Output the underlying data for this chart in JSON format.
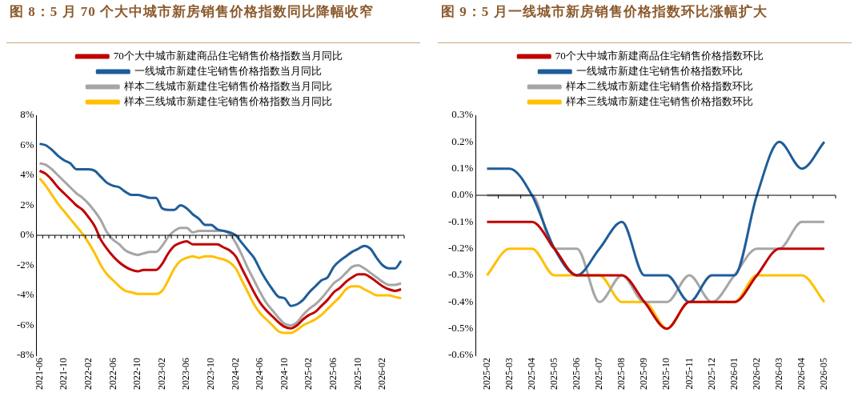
{
  "chart_data": [
    {
      "type": "line",
      "title": "图 8：5 月 70 个大中城市新房销售价格指数同比降幅收窄",
      "categories": [
        "2021-06",
        null,
        null,
        null,
        "2021-10",
        null,
        null,
        null,
        "2022-02",
        null,
        null,
        null,
        "2022-06",
        null,
        null,
        null,
        "2022-10",
        null,
        null,
        null,
        "2023-02",
        null,
        null,
        null,
        "2023-06",
        null,
        null,
        null,
        "2023-10",
        null,
        null,
        null,
        "2024-02",
        null,
        null,
        null,
        "2024-06",
        null,
        null,
        null,
        "2024-10",
        null,
        null,
        null,
        "2025-02",
        null,
        null,
        null,
        "2025-06",
        null,
        null,
        null,
        "2025-10",
        null,
        null,
        null,
        "2026-02",
        null,
        null,
        null
      ],
      "series": [
        {
          "name": "70个大中城市新建商品住宅销售价格指数当月同比",
          "color": "#c00000",
          "values": [
            4.3,
            4.1,
            3.7,
            3.2,
            2.8,
            2.4,
            2.0,
            1.7,
            1.2,
            0.6,
            -0.3,
            -0.9,
            -1.4,
            -1.8,
            -2.1,
            -2.3,
            -2.4,
            -2.3,
            -2.3,
            -2.3,
            -1.9,
            -1.2,
            -0.7,
            -0.5,
            -0.4,
            -0.6,
            -0.6,
            -0.6,
            -0.6,
            -0.6,
            -0.8,
            -1.0,
            -1.4,
            -2.2,
            -3.0,
            -3.8,
            -4.5,
            -5.0,
            -5.4,
            -5.8,
            -6.1,
            -6.2,
            -6.0,
            -5.6,
            -5.3,
            -5.1,
            -4.7,
            -4.3,
            -3.8,
            -3.5,
            -3.1,
            -2.8,
            -2.6,
            -2.6,
            -2.8,
            -3.1,
            -3.4,
            -3.6,
            -3.7,
            -3.6
          ]
        },
        {
          "name": "一线城市新建住宅销售价格指数当月同比",
          "color": "#1f5d99",
          "values": [
            6.1,
            6.0,
            5.7,
            5.3,
            5.0,
            4.8,
            4.4,
            4.4,
            4.4,
            4.3,
            3.9,
            3.5,
            3.3,
            3.2,
            2.9,
            2.7,
            2.7,
            2.6,
            2.5,
            2.5,
            1.8,
            1.7,
            1.7,
            2.0,
            1.8,
            1.4,
            1.1,
            0.7,
            0.7,
            0.4,
            0.3,
            0.2,
            0.0,
            -0.5,
            -1.0,
            -1.5,
            -2.3,
            -3.0,
            -3.6,
            -4.1,
            -4.2,
            -4.7,
            -4.6,
            -4.3,
            -3.8,
            -3.4,
            -3.0,
            -2.8,
            -2.1,
            -1.7,
            -1.4,
            -1.1,
            -0.9,
            -0.7,
            -0.9,
            -1.5,
            -2.0,
            -2.2,
            -2.2,
            -1.7
          ]
        },
        {
          "name": "样本二线城市新建住宅销售价格指数当月同比",
          "color": "#a6a6a6",
          "values": [
            4.8,
            4.7,
            4.4,
            4.0,
            3.6,
            3.2,
            2.8,
            2.5,
            2.1,
            1.6,
            1.0,
            0.2,
            -0.3,
            -0.6,
            -1.0,
            -1.2,
            -1.3,
            -1.2,
            -1.1,
            -1.1,
            -0.7,
            -0.1,
            0.3,
            0.5,
            0.5,
            0.2,
            0.3,
            0.3,
            0.3,
            0.3,
            0.3,
            0.1,
            -0.5,
            -1.3,
            -2.2,
            -3.0,
            -3.8,
            -4.5,
            -5.0,
            -5.5,
            -5.9,
            -6.0,
            -5.8,
            -5.3,
            -4.9,
            -4.6,
            -4.2,
            -3.7,
            -3.2,
            -2.9,
            -2.5,
            -2.1,
            -2.0,
            -2.2,
            -2.5,
            -2.8,
            -3.1,
            -3.3,
            -3.3,
            -3.2
          ]
        },
        {
          "name": "样本三线城市新建住宅销售价格指数当月同比",
          "color": "#ffc000",
          "values": [
            3.8,
            3.3,
            2.7,
            2.1,
            1.6,
            1.1,
            0.6,
            0.1,
            -0.5,
            -1.2,
            -2.0,
            -2.6,
            -3.0,
            -3.4,
            -3.7,
            -3.8,
            -3.9,
            -3.9,
            -3.9,
            -3.9,
            -3.7,
            -3.0,
            -2.2,
            -1.7,
            -1.5,
            -1.4,
            -1.5,
            -1.4,
            -1.4,
            -1.5,
            -1.6,
            -1.8,
            -2.2,
            -3.0,
            -3.8,
            -4.6,
            -5.2,
            -5.6,
            -6.0,
            -6.4,
            -6.5,
            -6.5,
            -6.3,
            -6.0,
            -5.8,
            -5.6,
            -5.3,
            -4.9,
            -4.5,
            -4.1,
            -3.6,
            -3.4,
            -3.4,
            -3.6,
            -3.8,
            -4.0,
            -4.0,
            -4.0,
            -4.1,
            -4.2
          ]
        }
      ],
      "ylim": [
        -8,
        8
      ],
      "yticks": [
        {
          "value": -8,
          "label": "-8%"
        },
        {
          "value": -6,
          "label": "-6%"
        },
        {
          "value": -4,
          "label": "-4%"
        },
        {
          "value": -2,
          "label": "-2%"
        },
        {
          "value": 0,
          "label": "0%"
        },
        {
          "value": 2,
          "label": "2%"
        },
        {
          "value": 4,
          "label": "4%"
        },
        {
          "value": 6,
          "label": "6%"
        },
        {
          "value": 8,
          "label": "8%"
        }
      ],
      "legend": "top"
    },
    {
      "type": "line",
      "title": "图 9：5 月一线城市新房销售价格指数环比涨幅扩大",
      "categories": [
        "2025-02",
        "2025-03",
        "2025-04",
        "2025-05",
        "2025-06",
        "2025-07",
        "2025-08",
        "2025-09",
        "2025-10",
        "2025-11",
        "2025-12",
        "2026-01",
        "2026-02",
        "2026-03",
        "2026-04",
        "2026-05"
      ],
      "series": [
        {
          "name": "70个大中城市新建商品住宅销售价格指数环比",
          "color": "#c00000",
          "values": [
            -0.1,
            -0.1,
            -0.1,
            -0.2,
            -0.3,
            -0.3,
            -0.3,
            -0.4,
            -0.5,
            -0.4,
            -0.4,
            -0.4,
            -0.3,
            -0.2,
            -0.2,
            -0.2
          ]
        },
        {
          "name": "一线城市新建住宅销售价格指数环比",
          "color": "#1f5d99",
          "values": [
            0.1,
            0.1,
            0.0,
            -0.2,
            -0.3,
            -0.2,
            -0.1,
            -0.3,
            -0.3,
            -0.4,
            -0.3,
            -0.3,
            0.0,
            0.2,
            0.1,
            0.2
          ]
        },
        {
          "name": "样本二线城市新建住宅销售价格指数环比",
          "color": "#a6a6a6",
          "values": [
            0.0,
            0.0,
            0.0,
            -0.2,
            -0.2,
            -0.4,
            -0.3,
            -0.4,
            -0.4,
            -0.3,
            -0.4,
            -0.3,
            -0.2,
            -0.2,
            -0.1,
            -0.1
          ]
        },
        {
          "name": "样本三线城市新建住宅销售价格指数环比",
          "color": "#ffc000",
          "values": [
            -0.3,
            -0.2,
            -0.2,
            -0.3,
            -0.3,
            -0.3,
            -0.4,
            -0.4,
            -0.5,
            -0.4,
            -0.4,
            -0.4,
            -0.3,
            -0.3,
            -0.3,
            -0.4
          ]
        }
      ],
      "ylim": [
        -0.6,
        0.3
      ],
      "yticks": [
        {
          "value": -0.6,
          "label": "-0.6%"
        },
        {
          "value": -0.5,
          "label": "-0.5%"
        },
        {
          "value": -0.4,
          "label": "-0.4%"
        },
        {
          "value": -0.3,
          "label": "-0.3%"
        },
        {
          "value": -0.2,
          "label": "-0.2%"
        },
        {
          "value": -0.1,
          "label": "-0.1%"
        },
        {
          "value": 0,
          "label": "0.0%"
        },
        {
          "value": 0.1,
          "label": "0.1%"
        },
        {
          "value": 0.2,
          "label": "0.2%"
        },
        {
          "value": 0.3,
          "label": "0.3%"
        }
      ],
      "legend": "top"
    }
  ]
}
